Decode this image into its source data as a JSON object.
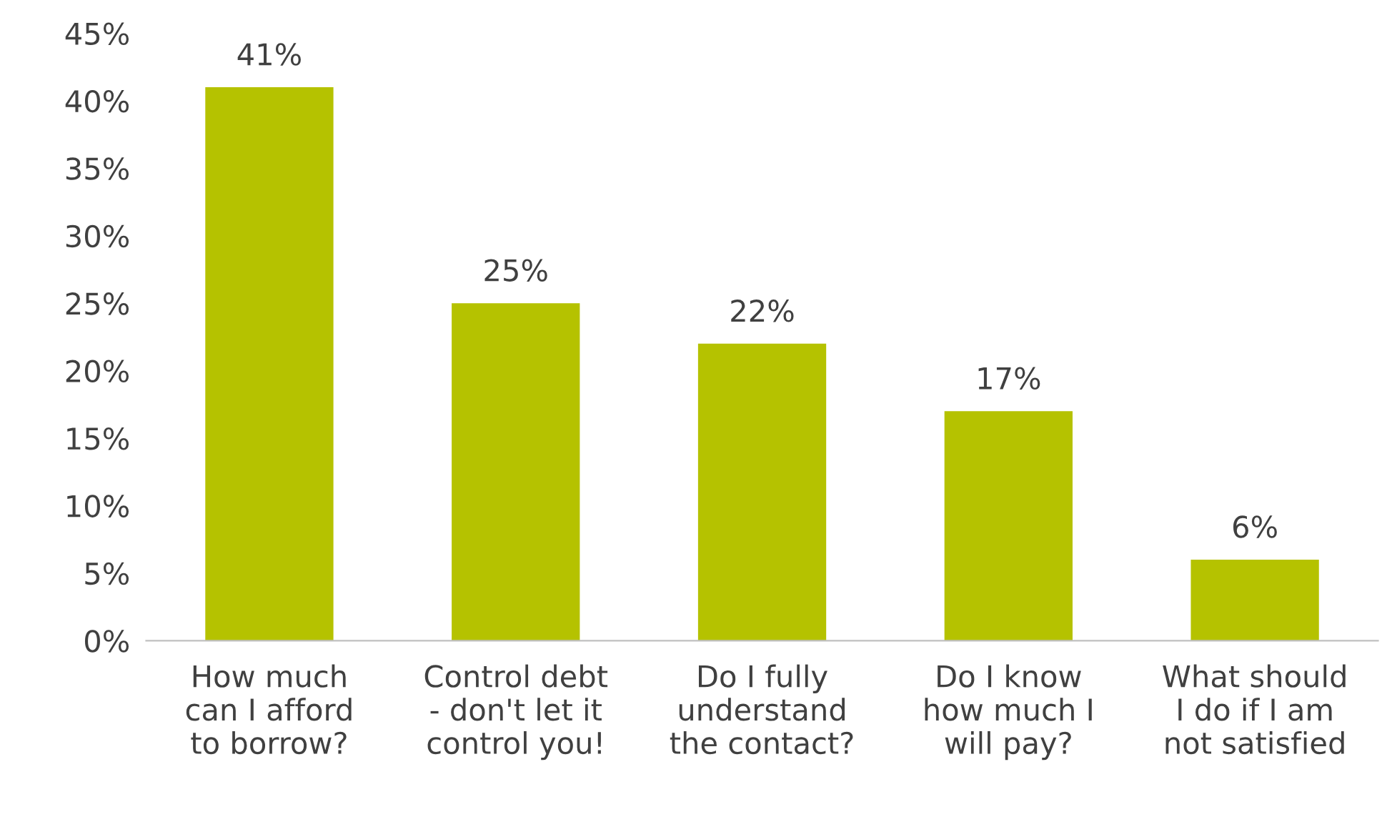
{
  "chart_data": {
    "type": "bar",
    "categories": [
      "How much\ncan I afford\nto borrow?",
      "Control debt\n- don't let it\ncontrol you!",
      "Do I fully\nunderstand\nthe contact?",
      "Do I know\nhow much I\nwill pay?",
      "What should\nI do if I am\nnot satisfied"
    ],
    "values": [
      41,
      25,
      22,
      17,
      6
    ],
    "value_labels": [
      "41%",
      "25%",
      "22%",
      "17%",
      "6%"
    ],
    "color": "#b5c200",
    "ylim": [
      0,
      45
    ],
    "yticks": [
      {
        "value": 0,
        "label": "0%"
      },
      {
        "value": 5,
        "label": "5%"
      },
      {
        "value": 10,
        "label": "10%"
      },
      {
        "value": 15,
        "label": "15%"
      },
      {
        "value": 20,
        "label": "20%"
      },
      {
        "value": 25,
        "label": "25%"
      },
      {
        "value": 30,
        "label": "30%"
      },
      {
        "value": 35,
        "label": "35%"
      },
      {
        "value": 40,
        "label": "40%"
      },
      {
        "value": 45,
        "label": "45%"
      }
    ],
    "grid": false,
    "legend": false
  }
}
